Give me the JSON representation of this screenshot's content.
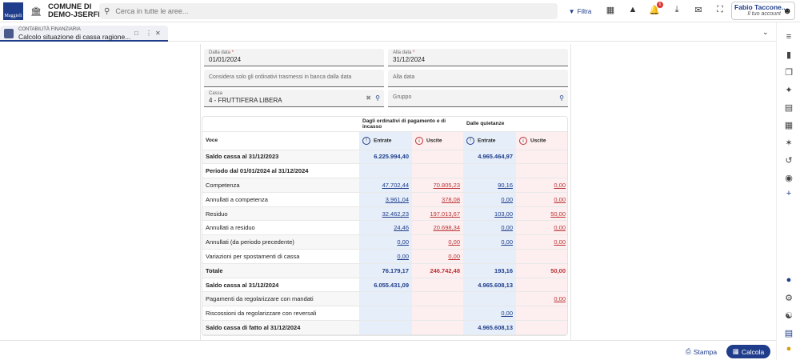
{
  "header": {
    "logo_text": "Maggioli",
    "org_line1": "COMUNE DI",
    "org_line2": "DEMO-JSERFIN",
    "search_placeholder": "Cerca in tutte le aree...",
    "filter_label": "Filtra",
    "notification_count": "6",
    "user_name": "Fabio Taccone...",
    "user_role": "Il tuo account"
  },
  "tab": {
    "module": "CONTABILITÀ FINANZIARIA",
    "title": "Calcolo situazione di cassa ragione..."
  },
  "form": {
    "dalla_data_label": "Dalla data",
    "dalla_data_value": "01/01/2024",
    "alla_data_label": "Alla data",
    "alla_data_value": "31/12/2024",
    "required_mark": "*",
    "considera_placeholder": "Considera solo gli ordinativi trasmessi in banca dalla data",
    "alla_data2_placeholder": "Alla data",
    "cassa_label": "Cassa",
    "cassa_value": "4 - FRUTTIFERA LIBERA",
    "gruppo_placeholder": "Gruppo"
  },
  "table": {
    "group1": "Dagli ordinativi di pagamento e di incasso",
    "group2": "Dalle quietanze",
    "voce_header": "Voce",
    "entrate": "Entrate",
    "uscite": "Uscite",
    "rows": [
      {
        "voce": "Saldo cassa al 31/12/2023",
        "bold": true,
        "e1": "6.225.994,40",
        "u1": "",
        "e2": "4.965.464,97",
        "u2": "",
        "link": false
      },
      {
        "voce": "Periodo dal 01/01/2024 al 31/12/2024",
        "bold": true,
        "e1": "",
        "u1": "",
        "e2": "",
        "u2": "",
        "link": false
      },
      {
        "voce": "Competenza",
        "bold": false,
        "e1": "47.702,44",
        "u1": "70.805,23",
        "e2": "90,16",
        "u2": "0,00",
        "link": true
      },
      {
        "voce": "Annullati a competenza",
        "bold": false,
        "e1": "3.961,04",
        "u1": "378,08",
        "e2": "0,00",
        "u2": "0,00",
        "link": true
      },
      {
        "voce": "Residuo",
        "bold": false,
        "e1": "32.462,23",
        "u1": "197.013,67",
        "e2": "103,00",
        "u2": "50,00",
        "link": true
      },
      {
        "voce": "Annullati a residuo",
        "bold": false,
        "e1": "24,46",
        "u1": "20.698,34",
        "e2": "0,00",
        "u2": "0,00",
        "link": true
      },
      {
        "voce": "Annullati (da periodo precedente)",
        "bold": false,
        "e1": "0,00",
        "u1": "0,00",
        "e2": "0,00",
        "u2": "0,00",
        "link": true
      },
      {
        "voce": "Variazioni per spostamenti di cassa",
        "bold": false,
        "e1": "0,00",
        "u1": "0,00",
        "e2": "",
        "u2": "",
        "link": true
      },
      {
        "voce": "Totale",
        "bold": true,
        "e1": "76.179,17",
        "u1": "246.742,48",
        "e2": "193,16",
        "u2": "50,00",
        "link": false
      },
      {
        "voce": "Saldo cassa al 31/12/2024",
        "bold": true,
        "e1": "6.055.431,09",
        "u1": "",
        "e2": "4.965.608,13",
        "u2": "",
        "link": false
      },
      {
        "voce": "Pagamenti da regolarizzare con mandati",
        "bold": false,
        "e1": "",
        "u1": "",
        "e2": "",
        "u2": "0,00",
        "link": true
      },
      {
        "voce": "Riscossioni da regolarizzare con reversali",
        "bold": false,
        "e1": "",
        "u1": "",
        "e2": "0,00",
        "u2": "",
        "link": true
      },
      {
        "voce": "Saldo cassa di fatto al 31/12/2024",
        "bold": true,
        "e1": "",
        "u1": "",
        "e2": "4.965.608,13",
        "u2": "",
        "link": false
      }
    ]
  },
  "footer": {
    "stampa_label": "Stampa",
    "calcola_label": "Calcola"
  },
  "colors": {
    "primary": "#1f3d8a",
    "entrate_bg": "#e6eef9",
    "uscite_bg": "#fdeff0",
    "uscite_text": "#b33"
  }
}
